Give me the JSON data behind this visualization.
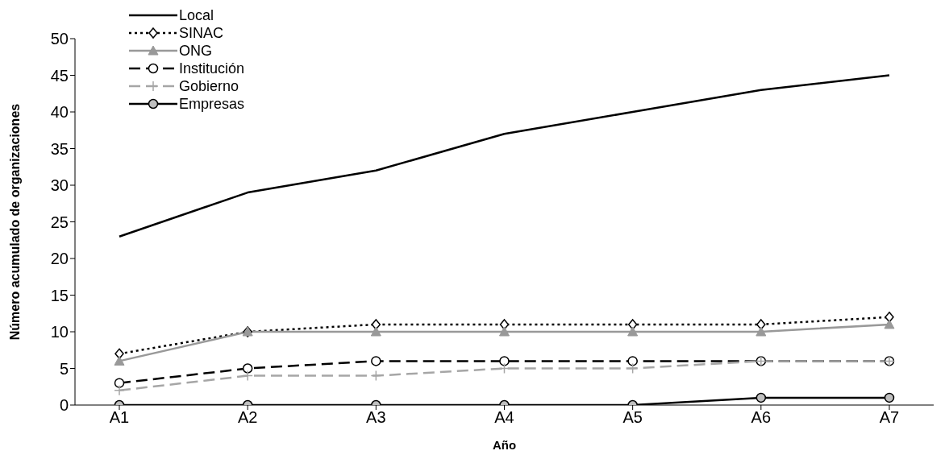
{
  "chart_data": {
    "type": "line",
    "xlabel": "Año",
    "ylabel": "Número acumulado de organizaciones",
    "categories": [
      "A1",
      "A2",
      "A3",
      "A4",
      "A5",
      "A6",
      "A7"
    ],
    "series": [
      {
        "name": "Local",
        "color": "#000000",
        "marker": "none",
        "line_style": "solid",
        "values": [
          23,
          29,
          32,
          37,
          40,
          43,
          45
        ]
      },
      {
        "name": "SINAC",
        "color": "#000000",
        "marker": "diamond",
        "line_style": "dotted",
        "values": [
          7,
          10,
          11,
          11,
          11,
          11,
          12
        ]
      },
      {
        "name": "ONG",
        "color": "#999999",
        "marker": "triangle",
        "line_style": "solid",
        "values": [
          6,
          10,
          10,
          10,
          10,
          10,
          11
        ]
      },
      {
        "name": "Institución",
        "color": "#000000",
        "marker": "circle",
        "line_style": "dashed",
        "values": [
          3,
          5,
          6,
          6,
          6,
          6,
          6
        ]
      },
      {
        "name": "Gobierno",
        "color": "#a6a6a6",
        "marker": "cross",
        "line_style": "dashed",
        "values": [
          2,
          4,
          4,
          5,
          5,
          6,
          6
        ]
      },
      {
        "name": "Empresas",
        "color": "#000000",
        "marker": "circle",
        "line_style": "solid",
        "values": [
          0,
          0,
          0,
          0,
          0,
          1,
          1
        ]
      }
    ],
    "ylim": [
      0,
      50
    ],
    "yticks": [
      0,
      5,
      10,
      15,
      20,
      25,
      30,
      35,
      40,
      45,
      50
    ],
    "legend": "top left"
  }
}
